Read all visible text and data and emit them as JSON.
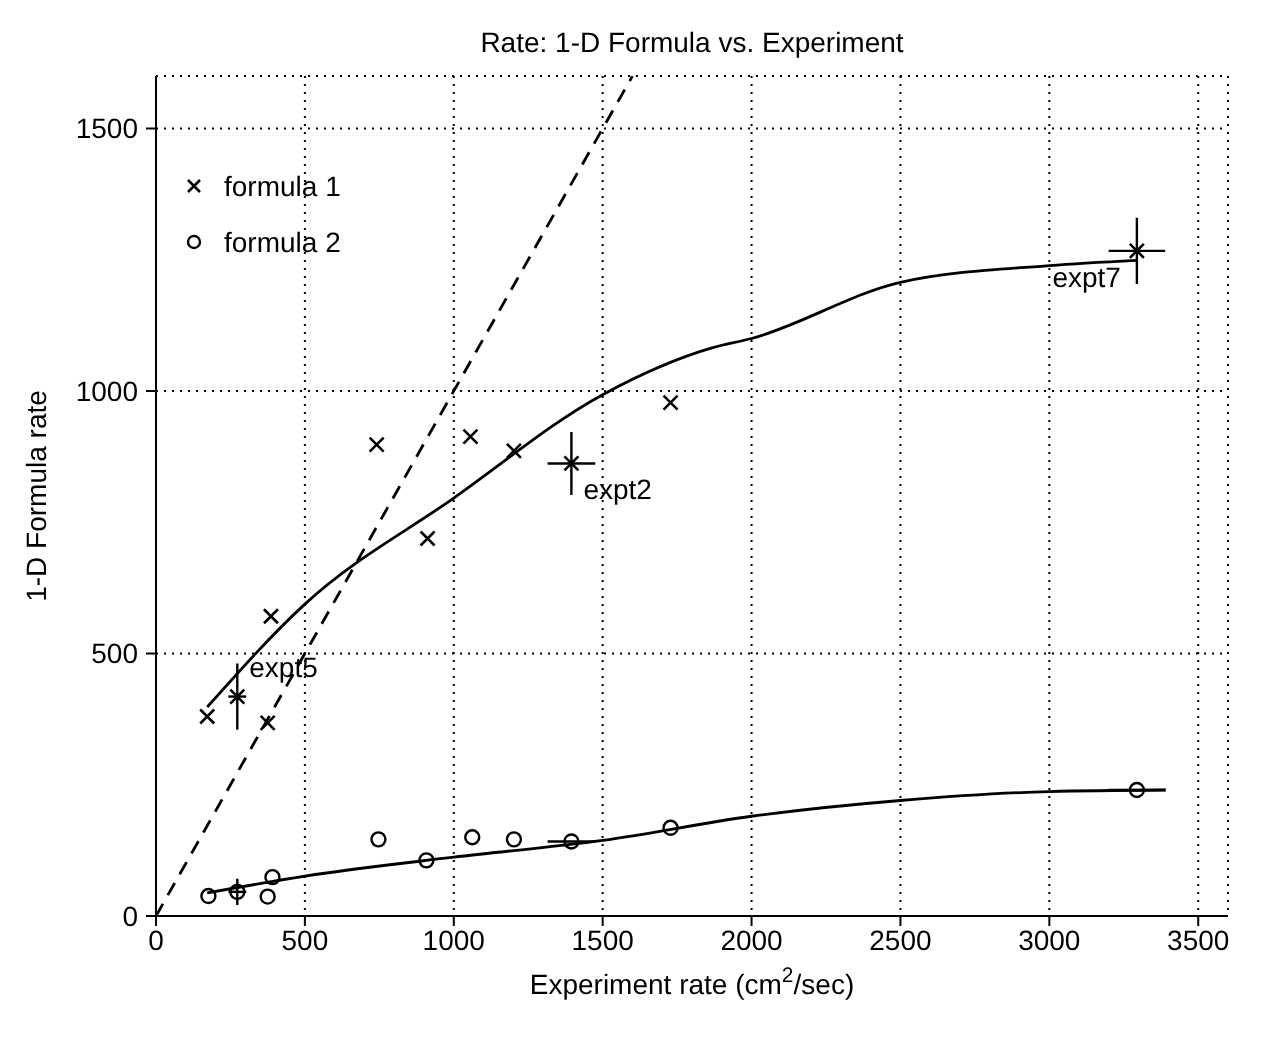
{
  "chart_data": {
    "type": "scatter",
    "title": "Rate:  1-D Formula vs. Experiment",
    "xlabel": "Experiment rate (cm$^{2}$/sec)",
    "ylabel": "1-D Formula rate",
    "xlim": [
      0,
      3600
    ],
    "ylim": [
      0,
      1600
    ],
    "xticks": [
      0,
      500,
      1000,
      1500,
      2000,
      2500,
      3000,
      3500
    ],
    "yticks": [
      0,
      500,
      1000,
      1500
    ],
    "grid": true,
    "legend": "top left",
    "series": [
      {
        "name": "formula 1",
        "color": "#000000",
        "marker": "cross",
        "x": [
          172,
          273,
          375,
          386,
          741,
          912,
          1056,
          1202,
          1395,
          1728,
          3294
        ],
        "values": [
          380,
          418,
          368,
          571,
          898,
          719,
          913,
          886,
          862,
          978,
          1267
        ],
        "errors": [
          null,
          63,
          null,
          null,
          null,
          null,
          null,
          null,
          60,
          null,
          63
        ],
        "xerrors": [
          null,
          30,
          null,
          null,
          null,
          null,
          null,
          null,
          80,
          null,
          95
        ]
      },
      {
        "name": "formula 2",
        "color": "#000000",
        "marker": "circle",
        "x": [
          176,
          273,
          375,
          391,
          747,
          908,
          1062,
          1202,
          1395,
          1728,
          3294
        ],
        "values": [
          38,
          46,
          37,
          74,
          146,
          106,
          150,
          146,
          142,
          168,
          240
        ],
        "errors": [
          null,
          25,
          null,
          null,
          null,
          null,
          null,
          null,
          null,
          null,
          null
        ],
        "xerrors": [
          null,
          30,
          null,
          null,
          null,
          null,
          null,
          null,
          80,
          null,
          95
        ]
      },
      {
        "type": "line",
        "color": "#000000",
        "line_style": "solid",
        "x": [
          172,
          500,
          1000,
          1500,
          1867,
          2000,
          2500,
          3000,
          3294
        ],
        "values": [
          398,
          594,
          796,
          993,
          1082,
          1100,
          1207,
          1239,
          1249
        ]
      },
      {
        "type": "line",
        "color": "#000000",
        "line_style": "solid",
        "x": [
          172,
          500,
          1000,
          1500,
          2000,
          2500,
          3000,
          3391
        ],
        "values": [
          44,
          76,
          112,
          144,
          190,
          220,
          237,
          240
        ]
      },
      {
        "type": "line",
        "color": "#000000",
        "line_style": "dashed",
        "x": [
          0,
          1600
        ],
        "values": [
          0,
          1600
        ]
      }
    ],
    "annotations": [
      {
        "text": "expt5",
        "x": 273,
        "y": 418
      },
      {
        "text": "expt2",
        "x": 1395,
        "y": 862
      },
      {
        "text": "expt7",
        "x": 3294,
        "y": 1267
      }
    ]
  }
}
